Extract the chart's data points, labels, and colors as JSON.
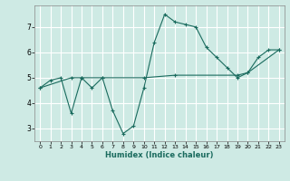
{
  "xlabel": "Humidex (Indice chaleur)",
  "bg_color": "#ceeae4",
  "grid_color": "#ffffff",
  "line_color": "#1a6b5e",
  "xlim": [
    -0.5,
    23.5
  ],
  "ylim": [
    2.5,
    7.85
  ],
  "yticks": [
    3,
    4,
    5,
    6,
    7
  ],
  "xticks": [
    0,
    1,
    2,
    3,
    4,
    5,
    6,
    7,
    8,
    9,
    10,
    11,
    12,
    13,
    14,
    15,
    16,
    17,
    18,
    19,
    20,
    21,
    22,
    23
  ],
  "line1_x": [
    0,
    1,
    2,
    3,
    4,
    5,
    6,
    7,
    8,
    9,
    10,
    11,
    12,
    13,
    14,
    15,
    16,
    17,
    18,
    19,
    20,
    21,
    22,
    23
  ],
  "line1_y": [
    4.6,
    4.9,
    5.0,
    3.6,
    5.0,
    4.6,
    5.0,
    3.7,
    2.8,
    3.1,
    4.6,
    6.4,
    7.5,
    7.2,
    7.1,
    7.0,
    6.2,
    5.8,
    5.4,
    5.0,
    5.2,
    5.8,
    6.1,
    6.1
  ],
  "line2_x": [
    0,
    3,
    4,
    6,
    10,
    13,
    19,
    20,
    23
  ],
  "line2_y": [
    4.6,
    5.0,
    5.0,
    5.0,
    5.0,
    5.1,
    5.1,
    5.2,
    6.1
  ]
}
